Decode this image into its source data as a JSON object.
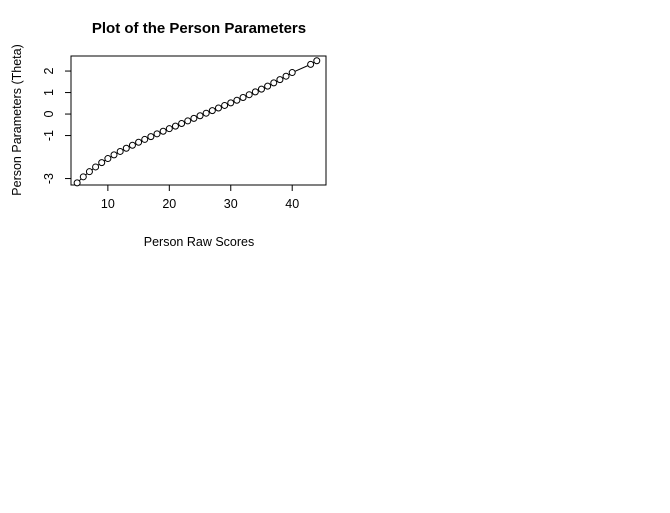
{
  "chart_data": {
    "type": "line",
    "title": "Plot of the Person Parameters",
    "xlabel": "Person Raw Scores",
    "ylabel": "Person Parameters (Theta)",
    "xlim": [
      4,
      45.5
    ],
    "ylim": [
      -3.3,
      2.7
    ],
    "xticks": [
      10,
      20,
      30,
      40
    ],
    "yticks": [
      -3,
      -1,
      0,
      1,
      2
    ],
    "markers": "open-circle",
    "grid": false,
    "legend": "none",
    "line_color": "#000000",
    "series": [
      {
        "x": [
          5,
          6,
          7,
          8,
          9,
          10,
          11,
          12,
          13,
          14,
          15,
          16,
          17,
          18,
          19,
          20,
          21,
          22,
          23,
          24,
          25,
          26,
          27,
          28,
          29,
          30,
          31,
          32,
          33,
          34,
          35,
          36,
          37,
          38,
          39,
          40,
          43,
          44
        ],
        "values": [
          -3.2,
          -2.92,
          -2.68,
          -2.46,
          -2.26,
          -2.07,
          -1.9,
          -1.74,
          -1.59,
          -1.45,
          -1.31,
          -1.18,
          -1.05,
          -0.92,
          -0.8,
          -0.68,
          -0.56,
          -0.44,
          -0.32,
          -0.2,
          -0.08,
          0.04,
          0.16,
          0.28,
          0.4,
          0.52,
          0.64,
          0.77,
          0.9,
          1.03,
          1.16,
          1.3,
          1.45,
          1.6,
          1.76,
          1.93,
          2.31,
          2.48
        ]
      }
    ]
  }
}
